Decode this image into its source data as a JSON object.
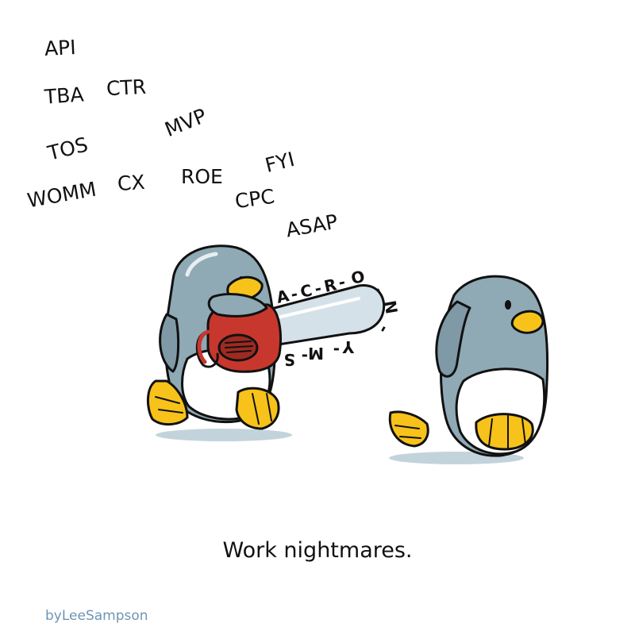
{
  "acronyms": [
    "API",
    "TBA",
    "CTR",
    "MVP",
    "TOS",
    "FYI",
    "WOMM",
    "CX",
    "ROE",
    "CPC",
    "ASAP"
  ],
  "chainsaw_letters": [
    "A",
    "-",
    "C",
    "-",
    "R",
    "-",
    "O",
    "-",
    "N",
    "-",
    "Y",
    "-",
    "M",
    "-",
    "S"
  ],
  "caption": "Work nightmares.",
  "credit": "byLeeSampson",
  "colors": {
    "penguin_body": "#8fa9b5",
    "penguin_belly": "#ffffff",
    "beak_feet": "#f7c21a",
    "chainsaw": "#c8372d",
    "blade": "#d5e1e8",
    "shadow": "#c3d3dc",
    "credit": "#6e95b4"
  }
}
